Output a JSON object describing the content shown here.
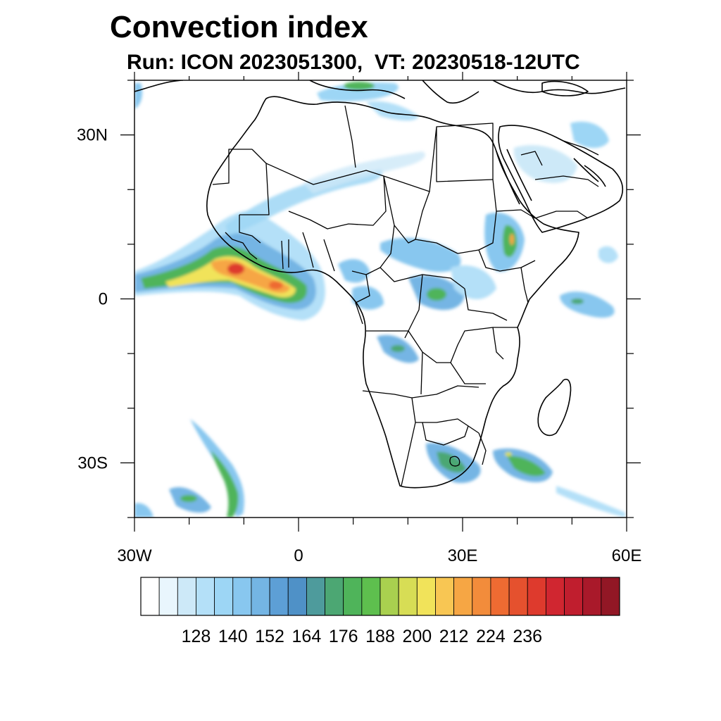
{
  "title": "Convection index",
  "subtitle": "Run: ICON 2023051300,  VT: 20230518-12UTC",
  "map": {
    "lon_range": [
      -30,
      60
    ],
    "lat_range": [
      -40,
      40
    ],
    "lat_ticks": [
      {
        "value": 30,
        "label": "30N"
      },
      {
        "value": 0,
        "label": "0"
      },
      {
        "value": -30,
        "label": "30S"
      }
    ],
    "lon_ticks": [
      {
        "value": -30,
        "label": "30W"
      },
      {
        "value": 0,
        "label": "0"
      },
      {
        "value": 30,
        "label": "30E"
      },
      {
        "value": 60,
        "label": "60E"
      }
    ]
  },
  "colorbar": {
    "colors": [
      "#ffffff",
      "#e9f6fd",
      "#cde9f8",
      "#b4e0f8",
      "#9dd6f5",
      "#88c7ef",
      "#74b5e4",
      "#5d9fd6",
      "#4f91c7",
      "#4e9b9c",
      "#4ca773",
      "#4fb45a",
      "#5ebf4e",
      "#a9d04f",
      "#d7dd55",
      "#f1e35a",
      "#f8c653",
      "#f6a644",
      "#f28c3b",
      "#ee6b32",
      "#e5512e",
      "#de3a2d",
      "#d02630",
      "#c01e2e",
      "#a9192a",
      "#921725"
    ],
    "labels": [
      "128",
      "140",
      "152",
      "164",
      "176",
      "188",
      "200",
      "212",
      "224",
      "236"
    ]
  }
}
